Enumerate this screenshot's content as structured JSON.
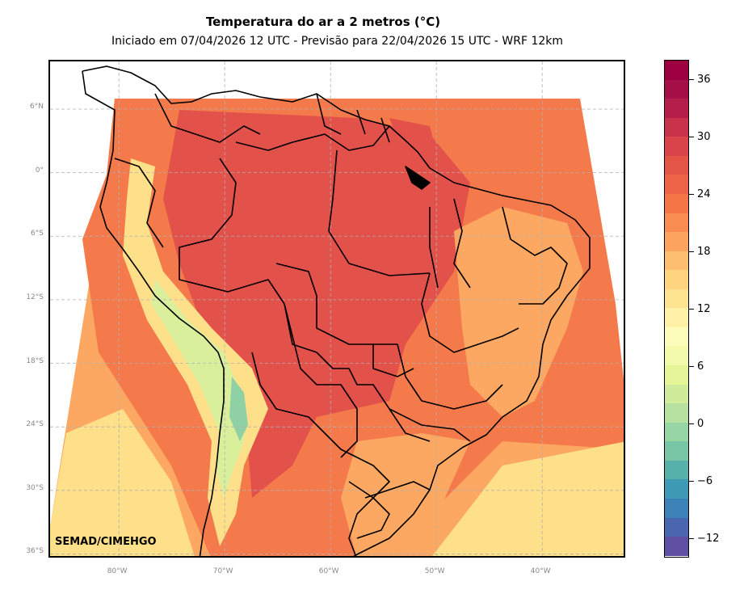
{
  "title": "Temperatura do ar a 2 metros (°C)",
  "subtitle": "Iniciado em 07/04/2026 12 UTC - Previsão para 22/04/2026 15 UTC - WRF 12km",
  "credit": "SEMAD/CIMEHGO",
  "lat_labels": [
    {
      "text": "6°N",
      "lat": 6
    },
    {
      "text": "0°",
      "lat": 0
    },
    {
      "text": "6°S",
      "lat": -6
    },
    {
      "text": "12°S",
      "lat": -12
    },
    {
      "text": "18°S",
      "lat": -18
    },
    {
      "text": "24°S",
      "lat": -24
    },
    {
      "text": "30°S",
      "lat": -30
    },
    {
      "text": "36°S",
      "lat": -36
    }
  ],
  "lon_labels": [
    {
      "text": "80°W",
      "lon": -80
    },
    {
      "text": "70°W",
      "lon": -70
    },
    {
      "text": "60°W",
      "lon": -60
    },
    {
      "text": "50°W",
      "lon": -50
    },
    {
      "text": "40°W",
      "lon": -40
    }
  ],
  "colorbar": {
    "min": -14,
    "max": 38,
    "step": 2,
    "ticks": [
      "36",
      "30",
      "24",
      "18",
      "12",
      "6",
      "0",
      "−6",
      "−12"
    ],
    "tick_values": [
      36,
      30,
      24,
      18,
      12,
      6,
      0,
      -6,
      -12
    ],
    "colors": [
      "#5e4fa2",
      "#4a66b0",
      "#3d81b9",
      "#3e9ab5",
      "#56b1aa",
      "#78c6a5",
      "#97d5a4",
      "#b6e1a1",
      "#d0ec9b",
      "#e6f598",
      "#f3faac",
      "#fcfdbb",
      "#fff1a8",
      "#fee491",
      "#fed47e",
      "#fdbf6f",
      "#fca35e",
      "#f88c51",
      "#f47647",
      "#ec6445",
      "#e35545",
      "#d84449",
      "#c9324b",
      "#b51d4a",
      "#a50f47",
      "#9e0142"
    ]
  },
  "map_colors": {
    "hot": "#e2514a",
    "warm": "#f47a4b",
    "mild": "#fca862",
    "cool": "#fee08b",
    "cold": "#d9ef9b",
    "very_cold": "#8fd0a4",
    "grid": "#b0b0b0",
    "border": "#000000"
  },
  "chart_data": {
    "type": "heatmap",
    "title": "Temperatura do ar a 2 metros (°C)",
    "subtitle": "Iniciado em 07/04/2026 12 UTC - Previsão para 22/04/2026 15 UTC - WRF 12km",
    "x_range_lon": [
      -86.5,
      -32
    ],
    "y_range_lat": [
      -36.5,
      10.5
    ],
    "colorbar_range": [
      -14,
      38
    ],
    "colorbar_ticks": [
      36,
      30,
      24,
      18,
      12,
      6,
      0,
      -6,
      -12
    ]
  }
}
